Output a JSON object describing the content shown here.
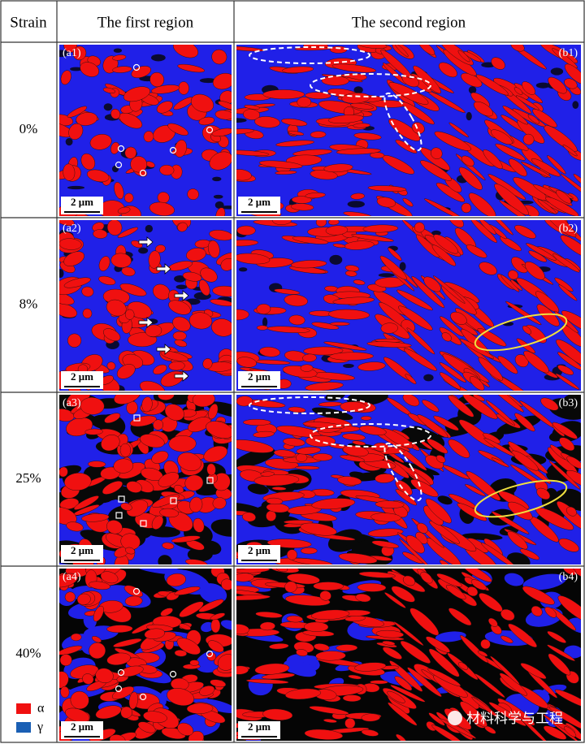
{
  "header": {
    "strain": "Strain",
    "first_region": "The first region",
    "second_region": "The second region"
  },
  "rows": [
    {
      "strain": "0%",
      "panel_a": "(a1)",
      "panel_b": "(b1)"
    },
    {
      "strain": "8%",
      "panel_a": "(a2)",
      "panel_b": "(b2)"
    },
    {
      "strain": "25%",
      "panel_a": "(a3)",
      "panel_b": "(b3)"
    },
    {
      "strain": "40%",
      "panel_a": "(a4)",
      "panel_b": "(b4)"
    }
  ],
  "scale_bar": "2 μm",
  "legend": {
    "alpha": "α",
    "gamma": "γ"
  },
  "watermark": "材料科学与工程"
}
